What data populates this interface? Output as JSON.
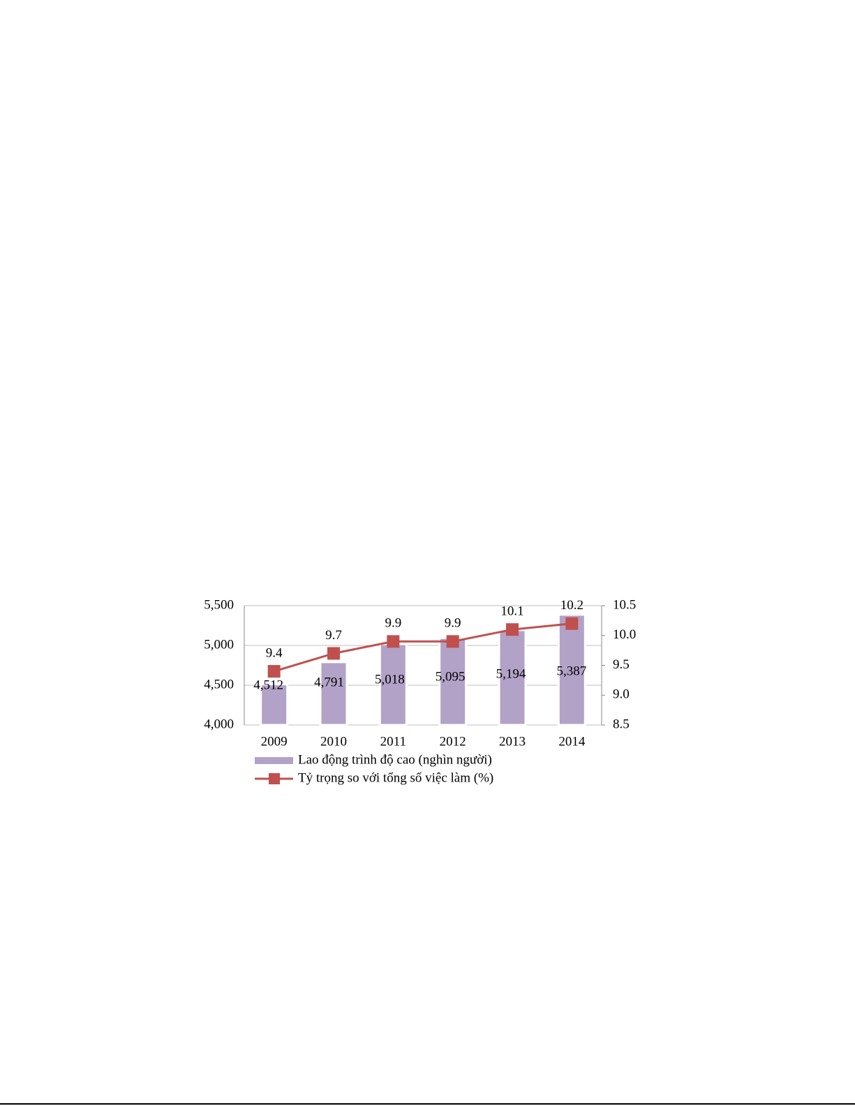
{
  "chart_data": {
    "type": "bar-line",
    "categories": [
      "2009",
      "2010",
      "2011",
      "2012",
      "2013",
      "2014"
    ],
    "series": [
      {
        "name": "Lao động trình độ cao (nghìn người)",
        "type": "bar",
        "color": "#b3a2c7",
        "values": [
          4512,
          4791,
          5018,
          5095,
          5194,
          5387
        ],
        "value_labels": [
          "4,512",
          "4,791",
          "5,018",
          "5,095",
          "5,194",
          "5,387"
        ]
      },
      {
        "name": "Tỷ trọng so với tổng số việc làm (%)",
        "type": "line",
        "axis": "y2",
        "color": "#c0504d",
        "values": [
          9.4,
          9.7,
          9.9,
          9.9,
          10.1,
          10.2
        ]
      }
    ],
    "ylim": [
      4000,
      5500
    ],
    "yticks": [
      {
        "value": 4000,
        "label": "4,000"
      },
      {
        "value": 4500,
        "label": "4,500"
      },
      {
        "value": 5000,
        "label": "5,000"
      },
      {
        "value": 5500,
        "label": "5,500"
      }
    ],
    "y2lim": [
      8.5,
      10.5
    ],
    "y2ticks": [
      8.5,
      {
        "value": 9,
        "label": "9.0"
      },
      9.5,
      {
        "value": 10,
        "label": "10.0"
      },
      10.5
    ],
    "grid": true
  }
}
